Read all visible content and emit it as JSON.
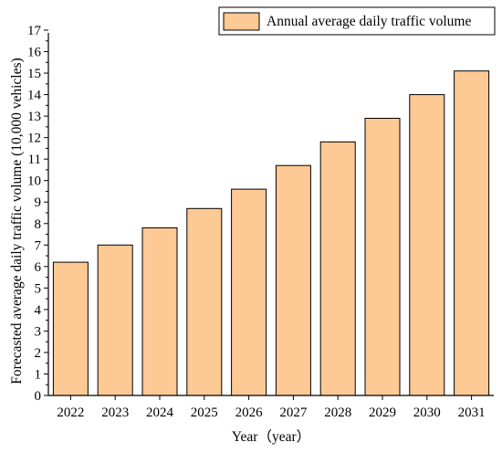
{
  "chart_data": {
    "type": "bar",
    "categories": [
      "2022",
      "2023",
      "2024",
      "2025",
      "2026",
      "2027",
      "2028",
      "2029",
      "2030",
      "2031"
    ],
    "series": [
      {
        "name": "Annual average daily traffic volume",
        "values": [
          6.2,
          7.0,
          7.8,
          8.7,
          9.6,
          10.7,
          11.8,
          12.9,
          14.0,
          15.1
        ]
      }
    ],
    "xlabel": "Year（year）",
    "ylabel": "Forecasted average daily traffic volume (10,000 vehicles)",
    "ylim": [
      0,
      17
    ],
    "yticks": [
      "0",
      "1",
      "2",
      "3",
      "4",
      "5",
      "6",
      "7",
      "8",
      "9",
      "10",
      "11",
      "12",
      "13",
      "14",
      "15",
      "16",
      "17"
    ],
    "grid": false,
    "legend": "top-right",
    "colors": {
      "bar_fill": "#fdc994",
      "bar_stroke": "#000000",
      "axis": "#000000"
    }
  }
}
